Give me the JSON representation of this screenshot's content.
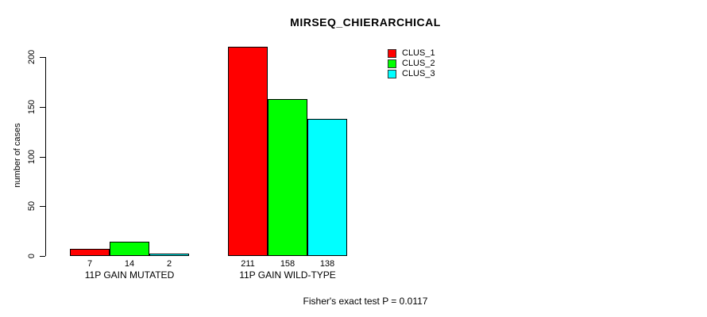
{
  "title": "MIRSEQ_CHIERARCHICAL",
  "footer": "Fisher's exact test P = 0.0117",
  "y_axis": {
    "label": "number of cases",
    "tick_labels": [
      "0",
      "50",
      "100",
      "150",
      "200"
    ]
  },
  "legend": {
    "items": [
      {
        "label": "CLUS_1",
        "color": "#FF0000"
      },
      {
        "label": "CLUS_2",
        "color": "#00FF00"
      },
      {
        "label": "CLUS_3",
        "color": "#00FFFF"
      }
    ]
  },
  "chart_data": {
    "type": "bar",
    "title": "MIRSEQ_CHIERARCHICAL",
    "categories": [
      "11P GAIN MUTATED",
      "11P GAIN WILD-TYPE"
    ],
    "series": [
      {
        "name": "CLUS_1",
        "color": "#FF0000",
        "values": [
          7,
          211
        ]
      },
      {
        "name": "CLUS_2",
        "color": "#00FF00",
        "values": [
          14,
          158
        ]
      },
      {
        "name": "CLUS_3",
        "color": "#00FFFF",
        "values": [
          2,
          138
        ]
      }
    ],
    "bar_value_labels": [
      [
        7,
        14,
        2
      ],
      [
        211,
        158,
        138
      ]
    ],
    "xlabel": "",
    "ylabel": "number of cases",
    "ylim": [
      0,
      220
    ],
    "yticks": [
      0,
      50,
      100,
      150,
      200
    ],
    "grid": false,
    "legend_position": "top-right",
    "annotation": "Fisher's exact test P = 0.0117",
    "background": "#FFFFFF",
    "bar_border_color": "#000000"
  }
}
